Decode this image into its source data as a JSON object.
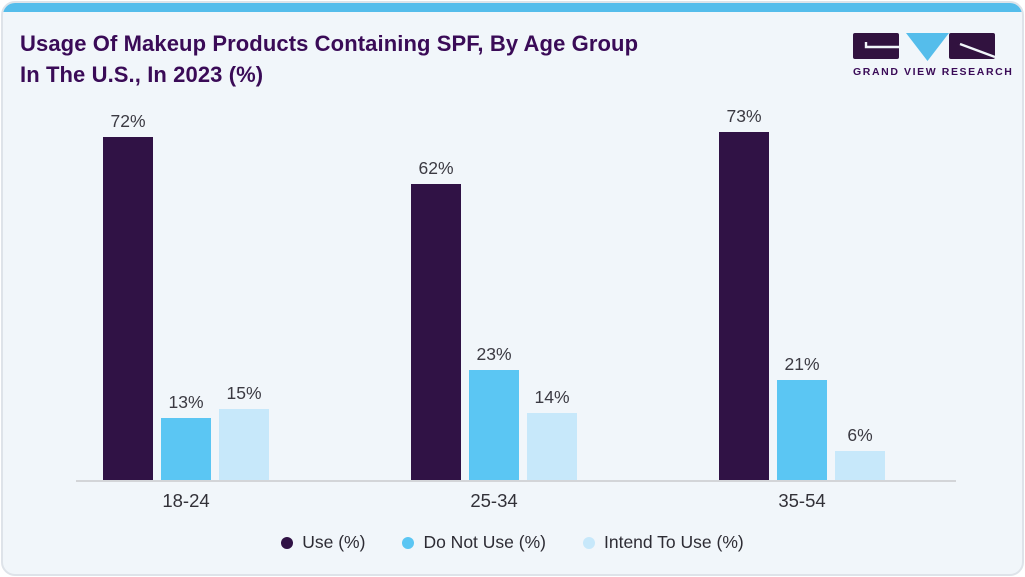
{
  "header": {
    "title_line1": "Usage Of Makeup Products Containing SPF, By Age Group",
    "title_line2": "In The U.S., In 2023 (%)",
    "logo_text": "GRAND VIEW RESEARCH"
  },
  "colors": {
    "accent_top_strip": "#55bdeb",
    "title_text": "#3a0b57",
    "logo_purple": "#31123f",
    "logo_blue": "#55bdeb",
    "card_background": "#f1f6fa",
    "axis_line": "#d3d5d8",
    "series_use": "#301245",
    "series_do_not_use": "#5bc6f3",
    "series_intend_to_use": "#c7e8fa"
  },
  "chart_data": {
    "type": "bar",
    "title": "Usage Of Makeup Products Containing SPF, By Age Group In The U.S., In 2023 (%)",
    "categories": [
      "18-24",
      "25-34",
      "35-54"
    ],
    "series": [
      {
        "name": "Use (%)",
        "values": [
          72,
          62,
          73
        ],
        "color": "#301245"
      },
      {
        "name": "Do Not Use (%)",
        "values": [
          13,
          23,
          21
        ],
        "color": "#5bc6f3"
      },
      {
        "name": "Intend To Use (%)",
        "values": [
          15,
          14,
          6
        ],
        "color": "#c7e8fa"
      }
    ],
    "value_suffix": "%",
    "data_labels": true,
    "xlabel": "",
    "ylabel": "",
    "ylim": [
      0,
      77
    ],
    "grid": false,
    "y_axis_visible": false,
    "legend_position": "bottom"
  }
}
